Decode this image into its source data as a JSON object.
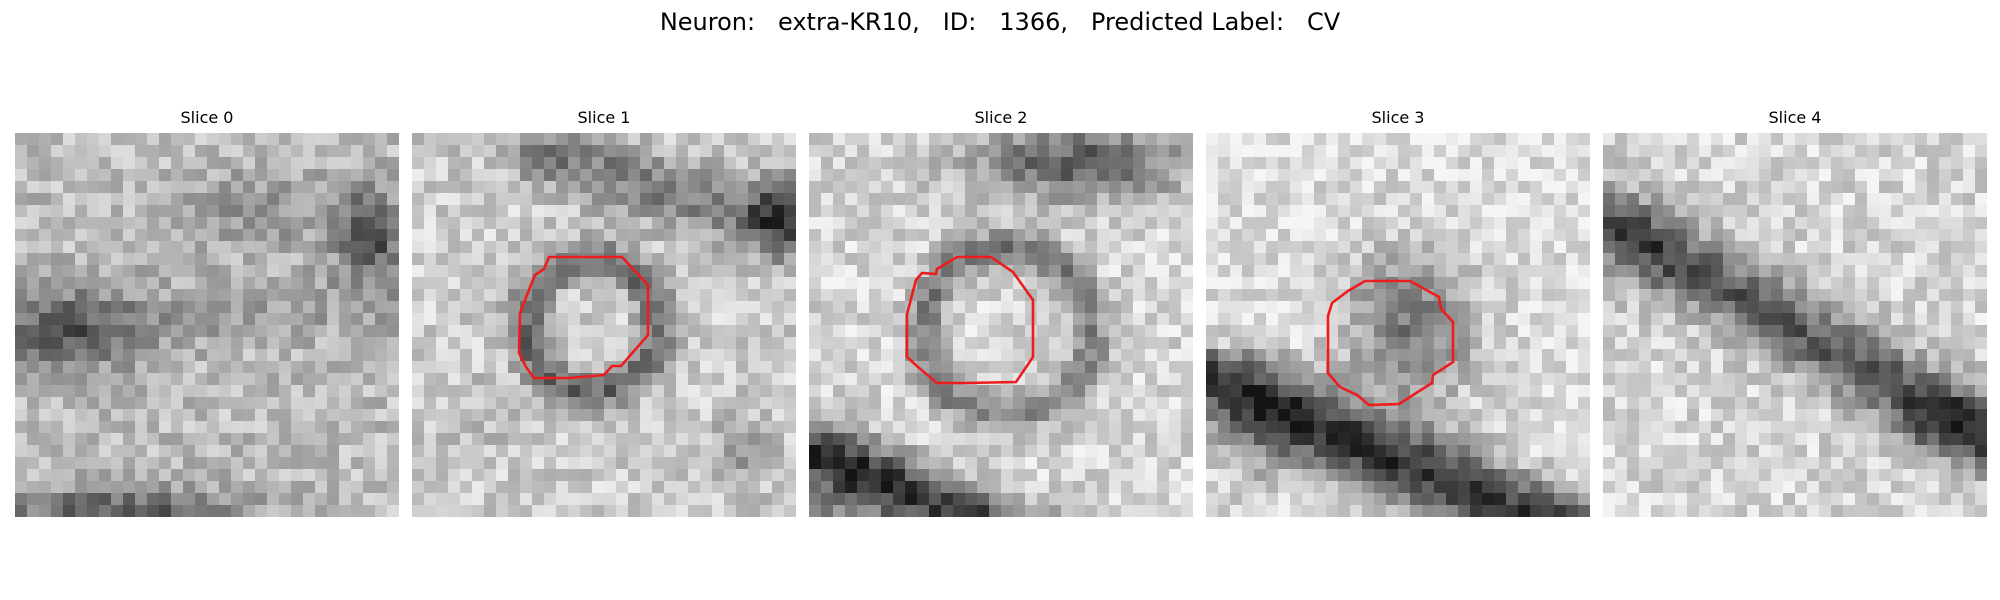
{
  "figure": {
    "neuron_label": "Neuron:",
    "neuron_name": "extra-KR10,",
    "id_label": "ID:",
    "id_value": "1366,",
    "predicted_label_label": "Predicted Label:",
    "predicted_label_value": "CV",
    "contour_color": "#ee1c1c"
  },
  "slices": [
    {
      "title": "Slice 0",
      "has_contour": false
    },
    {
      "title": "Slice 1",
      "has_contour": true
    },
    {
      "title": "Slice 2",
      "has_contour": true
    },
    {
      "title": "Slice 3",
      "has_contour": true
    },
    {
      "title": "Slice 4",
      "has_contour": false
    }
  ]
}
